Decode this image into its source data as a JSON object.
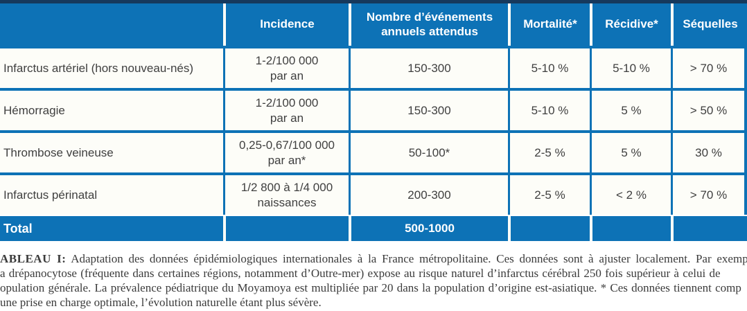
{
  "colors": {
    "table_blue": "#0d72b6",
    "top_bar": "#16395d",
    "cell_background": "#fdfdf8",
    "cell_text": "#3f3f3f",
    "header_text": "#ffffff",
    "caption_text": "#3b3b3b"
  },
  "table": {
    "headers": {
      "col0": "",
      "incidence": "Incidence",
      "events": "Nombre d’événements annuels attendus",
      "mortality": "Mortalité*",
      "recurrence": "Récidive*",
      "sequelae": "Séquelles"
    },
    "rows": [
      {
        "label": "Infarctus artériel (hors nouveau-nés)",
        "incidence_1": "1-2/100 000",
        "incidence_2": "par an",
        "events": "150-300",
        "mortality": "5-10 %",
        "recurrence": "5-10 %",
        "sequelae": "> 70 %"
      },
      {
        "label": "Hémorragie",
        "incidence_1": "1-2/100 000",
        "incidence_2": "par an",
        "events": "150-300",
        "mortality": "5-10 %",
        "recurrence": "5 %",
        "sequelae": "> 50 %"
      },
      {
        "label": "Thrombose veineuse",
        "incidence_1": "0,25-0,67/100 000",
        "incidence_2": "par an*",
        "events": "50-100*",
        "mortality": "2-5 %",
        "recurrence": "5 %",
        "sequelae": "30 %"
      },
      {
        "label": "Infarctus périnatal",
        "incidence_1": "1/2 800 à 1/4 000",
        "incidence_2": "naissances",
        "events": "200-300",
        "mortality": "2-5 %",
        "recurrence": "< 2 %",
        "sequelae": "> 70 %"
      }
    ],
    "total": {
      "label": "Total",
      "events": "500-1000"
    }
  },
  "caption": {
    "lead": "ABLEAU I:",
    "line1_rest": "Adaptation des données épidémiologiques internationales à la France métropolitaine. Ces données sont à ajuster localement. Par exemp",
    "line2": "a drépanocytose (fréquente dans certaines régions, notamment d’Outre-mer) expose au risque naturel d’infarctus cérébral 250 fois supérieur à celui de",
    "line3": "opulation générale. La prévalence pédiatrique du Moyamoya est multipliée par 20 dans la population d’origine est-asiatique. * Ces données tiennent comp",
    "line4": "une prise en charge optimale, l’évolution naturelle étant plus sévère."
  }
}
